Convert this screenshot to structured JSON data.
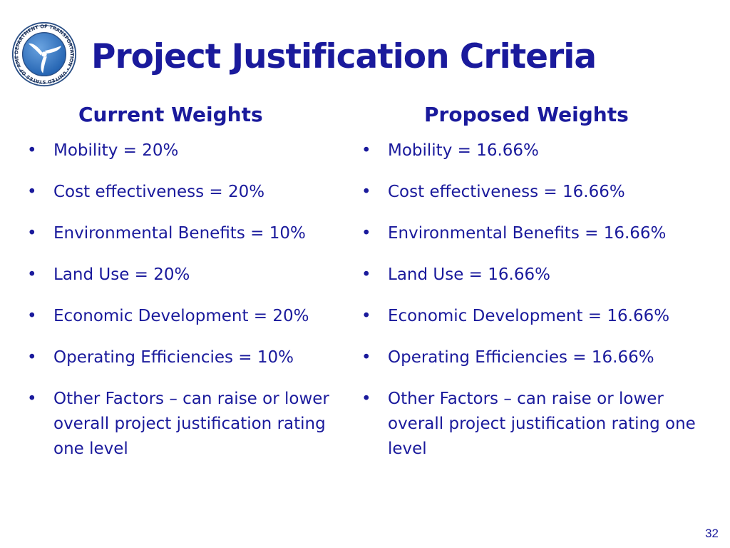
{
  "slide": {
    "title": "Project Justification Criteria",
    "page_number": "32",
    "seal": {
      "ring_text": "DEPARTMENT OF TRANSPORTATION • UNITED STATES OF AMERICA"
    },
    "columns": [
      {
        "heading": "Current Weights",
        "items": [
          "Mobility = 20%",
          "Cost effectiveness = 20%",
          "Environmental Benefits = 10%",
          "Land Use = 20%",
          "Economic Development = 20%",
          "Operating Efficiencies = 10%",
          "Other Factors – can raise or lower overall project justification rating one level"
        ]
      },
      {
        "heading": "Proposed Weights",
        "items": [
          "Mobility = 16.66%",
          "Cost effectiveness = 16.66%",
          "Environmental Benefits = 16.66%",
          "Land Use = 16.66%",
          "Economic Development = 16.66%",
          "Operating Efficiencies = 16.66%",
          "Other Factors – can raise or lower overall project justification rating one level"
        ]
      }
    ],
    "colors": {
      "text": "#1a1a9c",
      "seal_blue": "#1f5fae",
      "background": "#ffffff"
    },
    "bullet_glyph": "•"
  }
}
